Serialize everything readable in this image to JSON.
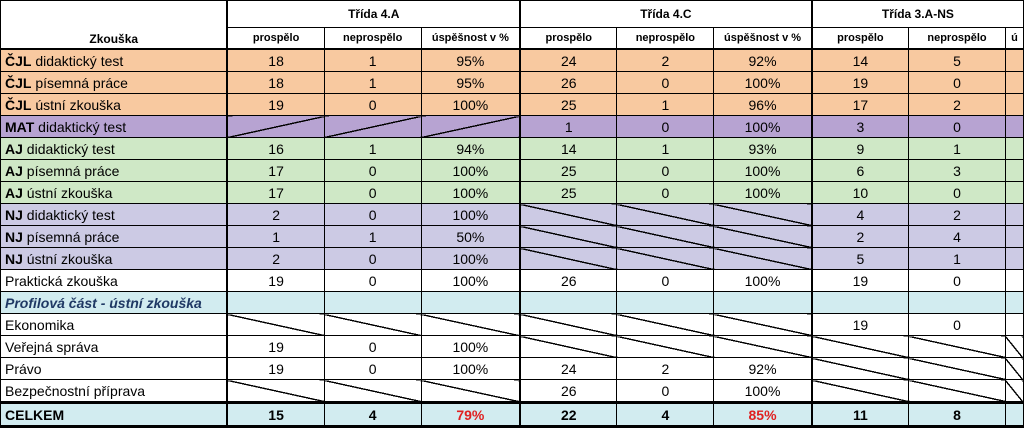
{
  "header": {
    "zkouska": "Zkouška",
    "classes": [
      "Třída 4.A",
      "Třída 4.C",
      "Třída 3.A-NS"
    ],
    "cols": [
      "prospělo",
      "neprospělo",
      "úspěšnost v %"
    ]
  },
  "rows": [
    {
      "b": "ČJL",
      "t": " didaktický test",
      "a": [
        "18",
        "1",
        "95%"
      ],
      "c": [
        "24",
        "2",
        "92%"
      ],
      "n": [
        "14",
        "5"
      ]
    },
    {
      "b": "ČJL",
      "t": " písemná práce",
      "a": [
        "18",
        "1",
        "95%"
      ],
      "c": [
        "26",
        "0",
        "100%"
      ],
      "n": [
        "19",
        "0"
      ]
    },
    {
      "b": "ČJL",
      "t": " ústní zkouška",
      "a": [
        "19",
        "0",
        "100%"
      ],
      "c": [
        "25",
        "1",
        "96%"
      ],
      "n": [
        "17",
        "2"
      ]
    },
    {
      "b": "MAT",
      "t": " didaktický test",
      "c": [
        "1",
        "0",
        "100%"
      ],
      "n": [
        "3",
        "0"
      ]
    },
    {
      "b": "AJ",
      "t": " didaktický test",
      "a": [
        "16",
        "1",
        "94%"
      ],
      "c": [
        "14",
        "1",
        "93%"
      ],
      "n": [
        "9",
        "1"
      ]
    },
    {
      "b": "AJ",
      "t": " písemná práce",
      "a": [
        "17",
        "0",
        "100%"
      ],
      "c": [
        "25",
        "0",
        "100%"
      ],
      "n": [
        "6",
        "3"
      ]
    },
    {
      "b": "AJ",
      "t": " ústní zkouška",
      "a": [
        "17",
        "0",
        "100%"
      ],
      "c": [
        "25",
        "0",
        "100%"
      ],
      "n": [
        "10",
        "0"
      ]
    },
    {
      "b": "NJ",
      "t": " didaktický test",
      "a": [
        "2",
        "0",
        "100%"
      ],
      "n": [
        "4",
        "2"
      ]
    },
    {
      "b": "NJ",
      "t": " písemná práce",
      "a": [
        "1",
        "1",
        "50%"
      ],
      "n": [
        "2",
        "4"
      ]
    },
    {
      "b": "NJ",
      "t": " ústní zkouška",
      "a": [
        "2",
        "0",
        "100%"
      ],
      "n": [
        "5",
        "1"
      ]
    },
    {
      "b": "",
      "t": "Praktická zkouška",
      "a": [
        "19",
        "0",
        "100%"
      ],
      "c": [
        "26",
        "0",
        "100%"
      ],
      "n": [
        "19",
        "0"
      ]
    },
    {
      "b": "",
      "t": "Profilová část - ústní zkouška"
    },
    {
      "b": "",
      "t": "Ekonomika",
      "n": [
        "19",
        "0"
      ]
    },
    {
      "b": "",
      "t": "Veřejná správa",
      "a": [
        "19",
        "0",
        "100%"
      ]
    },
    {
      "b": "",
      "t": "Právo",
      "a": [
        "19",
        "0",
        "100%"
      ],
      "c": [
        "24",
        "2",
        "92%"
      ]
    },
    {
      "b": "",
      "t": "Bezpečnostní příprava",
      "c": [
        "26",
        "0",
        "100%"
      ]
    }
  ],
  "total": {
    "label": "CELKEM",
    "a": [
      "15",
      "4",
      "79%"
    ],
    "c": [
      "22",
      "4",
      "85%"
    ],
    "n": [
      "11",
      "8"
    ]
  }
}
